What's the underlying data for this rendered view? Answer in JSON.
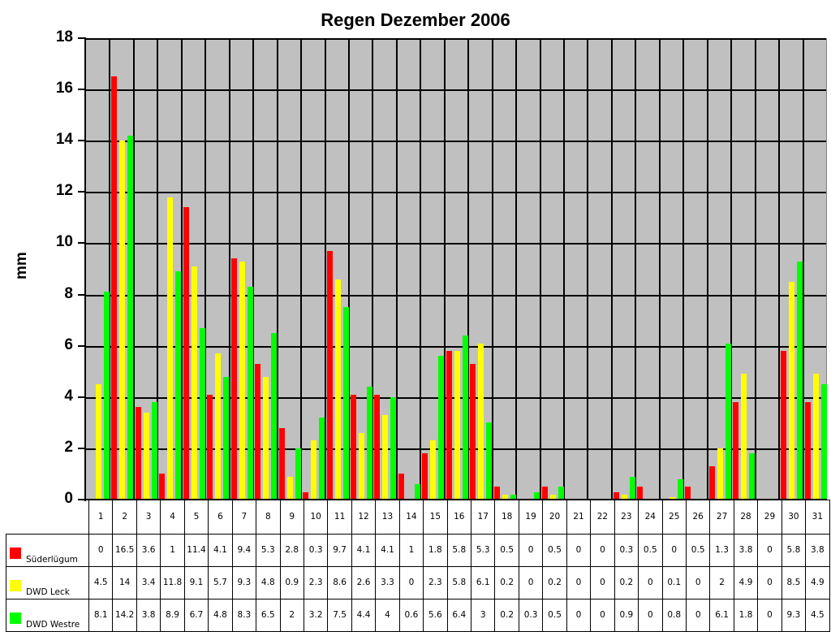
{
  "chart_data": {
    "type": "bar",
    "title": "Regen Dezember 2006",
    "xlabel": "",
    "ylabel": "mm",
    "ylim": [
      0,
      18
    ],
    "yticks": [
      0,
      2,
      4,
      6,
      8,
      10,
      12,
      14,
      16,
      18
    ],
    "grid": true,
    "legend_position": "data-table-left",
    "categories": [
      "1",
      "2",
      "3",
      "4",
      "5",
      "6",
      "7",
      "8",
      "9",
      "10",
      "11",
      "12",
      "13",
      "14",
      "15",
      "16",
      "17",
      "18",
      "19",
      "20",
      "21",
      "22",
      "23",
      "24",
      "25",
      "26",
      "27",
      "28",
      "29",
      "30",
      "31"
    ],
    "series": [
      {
        "name": "Süderlügum",
        "color": "#ff0000",
        "values": [
          0,
          16.5,
          3.6,
          1,
          11.4,
          4.1,
          9.4,
          5.3,
          2.8,
          0.3,
          9.7,
          4.1,
          4.1,
          1,
          1.8,
          5.8,
          5.3,
          0.5,
          0,
          0.5,
          0,
          0,
          0.3,
          0.5,
          0,
          0.5,
          1.3,
          3.8,
          0,
          5.8,
          3.8
        ]
      },
      {
        "name": "DWD Leck",
        "color": "#ffff00",
        "values": [
          4.5,
          14,
          3.4,
          11.8,
          9.1,
          5.7,
          9.3,
          4.8,
          0.9,
          2.3,
          8.6,
          2.6,
          3.3,
          0,
          2.3,
          5.8,
          6.1,
          0.2,
          0,
          0.2,
          0,
          0,
          0.2,
          0,
          0.1,
          0,
          2,
          4.9,
          0,
          8.5,
          4.9
        ]
      },
      {
        "name": "DWD Westre",
        "color": "#00ff00",
        "values": [
          8.1,
          14.2,
          3.8,
          8.9,
          6.7,
          4.8,
          8.3,
          6.5,
          2,
          3.2,
          7.5,
          4.4,
          4,
          0.6,
          5.6,
          6.4,
          3,
          0.2,
          0.3,
          0.5,
          0,
          0,
          0.9,
          0,
          0.8,
          0,
          6.1,
          1.8,
          0,
          9.3,
          4.5
        ]
      }
    ]
  },
  "colors": {
    "plot_background": "#c0c0c0",
    "grid": "#000000"
  }
}
